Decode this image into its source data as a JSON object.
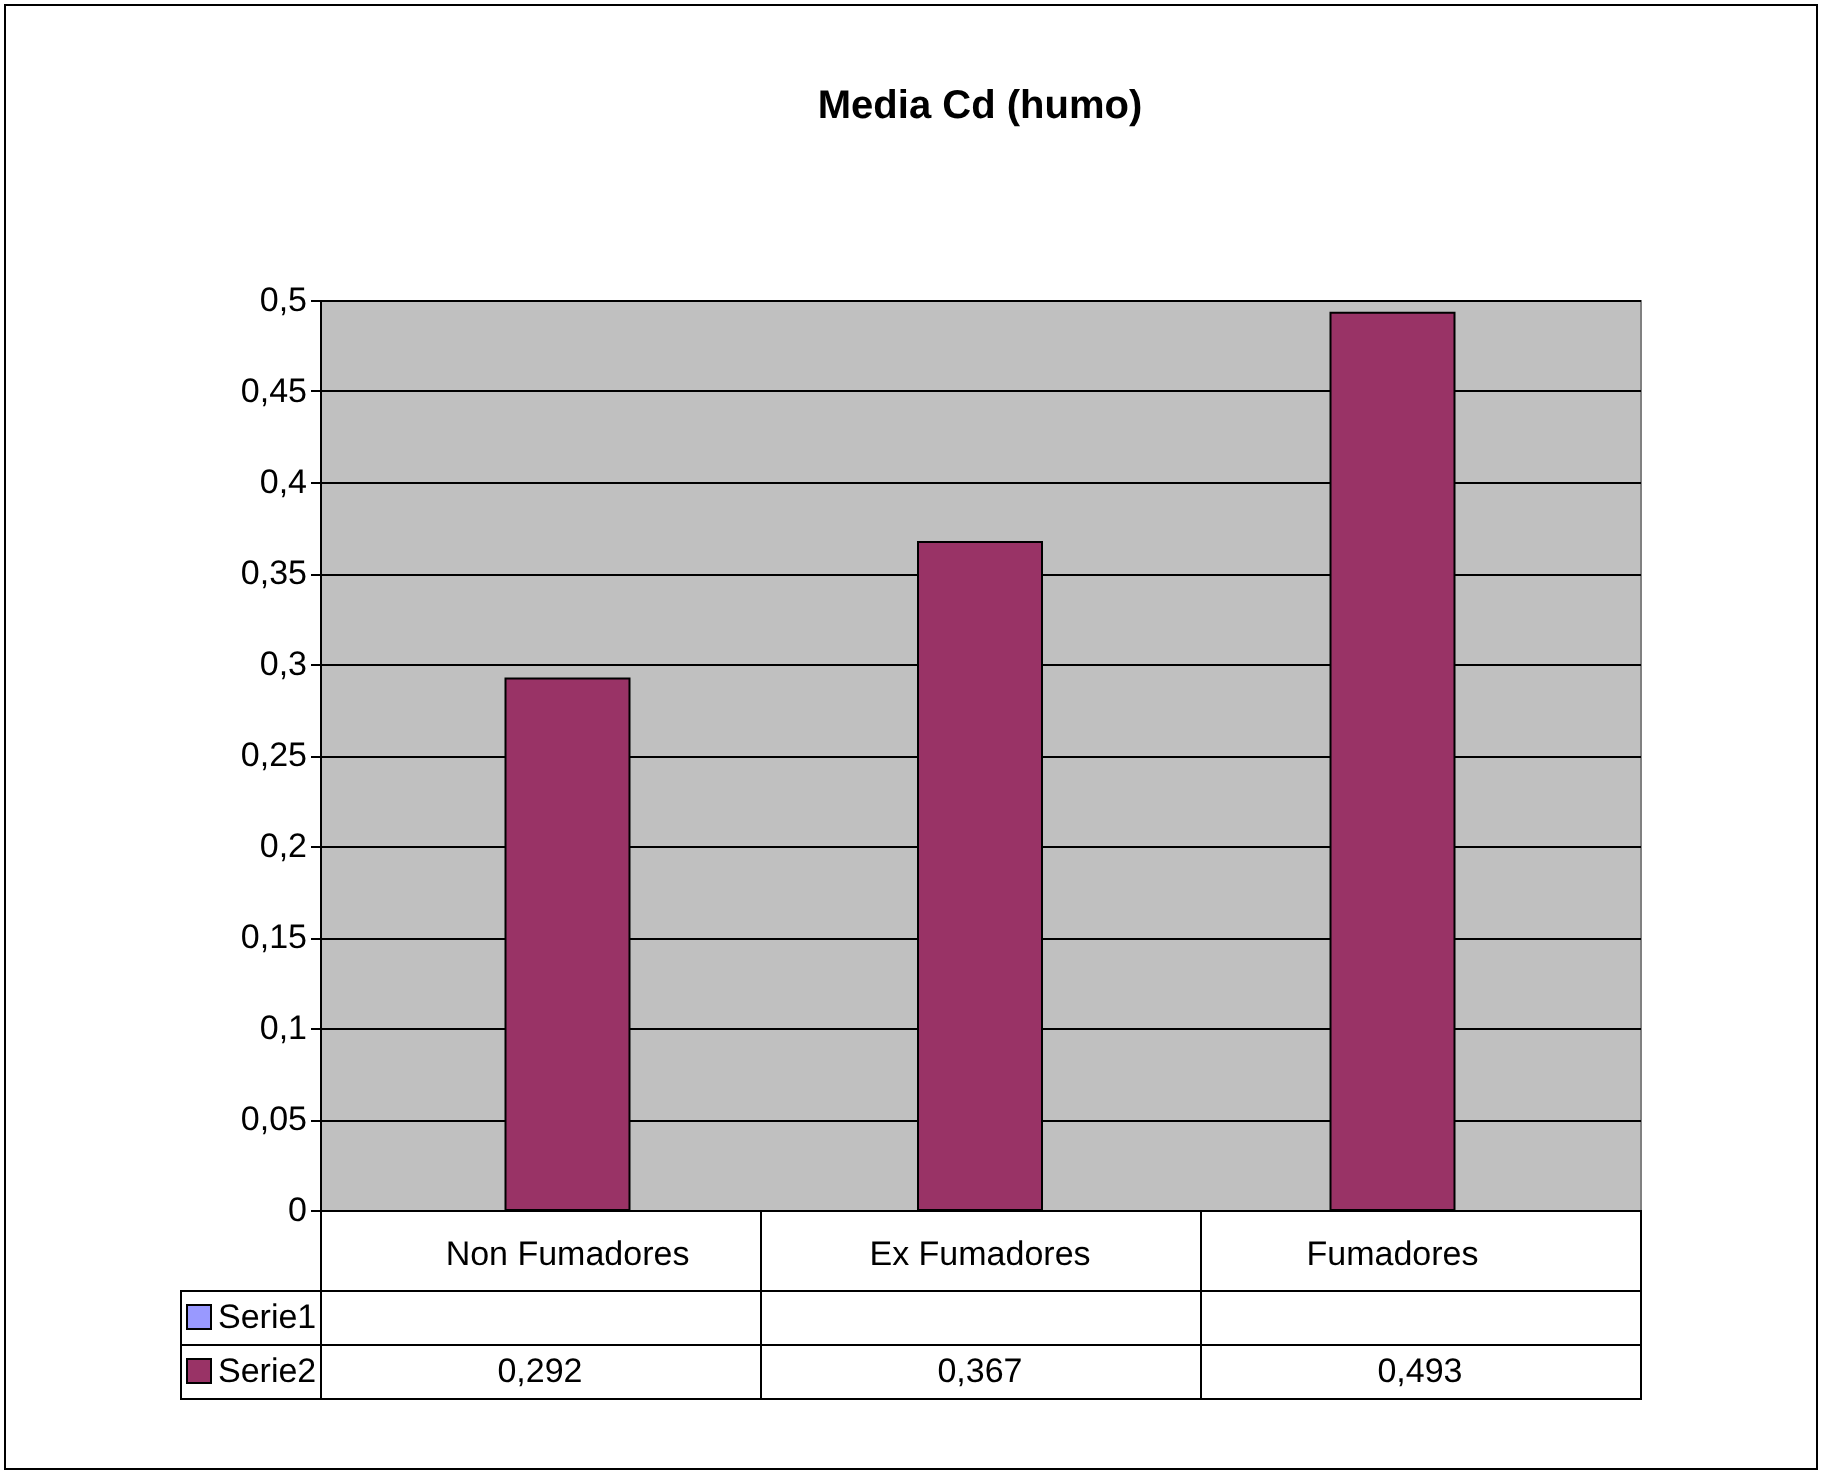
{
  "chart_data": {
    "type": "bar",
    "title": "Media Cd (humo)",
    "categories": [
      "Non Fumadores",
      "Ex Fumadores",
      "Fumadores"
    ],
    "series": [
      {
        "name": "Serie1",
        "color": "#9999ff",
        "values": [
          null,
          null,
          null
        ]
      },
      {
        "name": "Serie2",
        "color": "#993366",
        "values": [
          0.292,
          0.367,
          0.493
        ],
        "value_labels": [
          "0,292",
          "0,367",
          "0,493"
        ]
      }
    ],
    "ylim": [
      0,
      0.5
    ],
    "yticks": [
      0,
      {
        "value": 0.05,
        "label": "0,05"
      },
      {
        "value": 0.1,
        "label": "0,1"
      },
      {
        "value": 0.15,
        "label": "0,15"
      },
      {
        "value": 0.2,
        "label": "0,2"
      },
      {
        "value": 0.25,
        "label": "0,25"
      },
      {
        "value": 0.3,
        "label": "0,3"
      },
      {
        "value": 0.35,
        "label": "0,35"
      },
      {
        "value": 0.4,
        "label": "0,4"
      },
      {
        "value": 0.45,
        "label": "0,45"
      },
      {
        "value": 0.5,
        "label": "0,5"
      }
    ],
    "grid": "y",
    "legend": "bottom"
  }
}
